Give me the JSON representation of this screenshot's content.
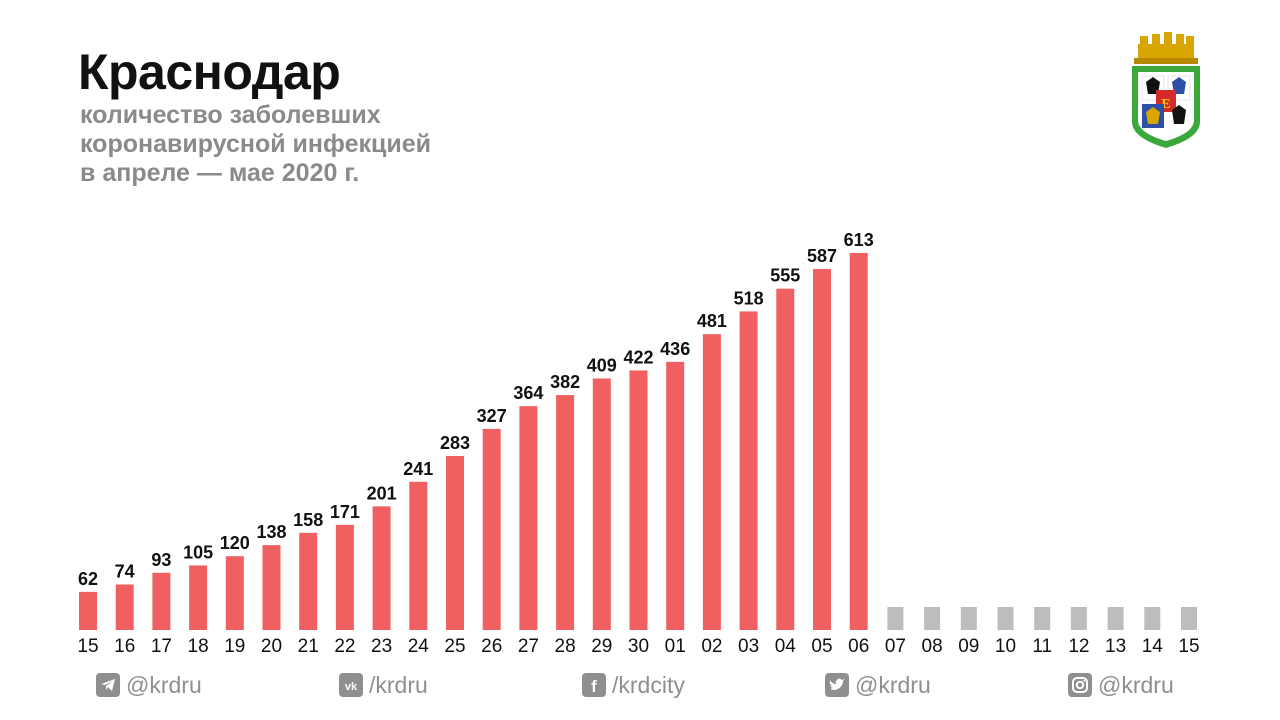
{
  "header": {
    "title": "Краснодар",
    "subtitle_lines": [
      "количество заболевших",
      "коронавирусной инфекцией",
      "в апреле — мае 2020 г."
    ]
  },
  "colors": {
    "bar": "#f06060",
    "future_bar": "#bdbdbd",
    "label": "#111111",
    "muted": "#8f8f8f"
  },
  "chart_data": {
    "type": "bar",
    "title": "количество заболевших коронавирусной инфекцией в апреле — мае 2020 г.",
    "xlabel": "",
    "ylabel": "",
    "categories": [
      "15",
      "16",
      "17",
      "18",
      "19",
      "20",
      "21",
      "22",
      "23",
      "24",
      "25",
      "26",
      "27",
      "28",
      "29",
      "30",
      "01",
      "02",
      "03",
      "04",
      "05",
      "06",
      "07",
      "08",
      "09",
      "10",
      "11",
      "12",
      "13",
      "14",
      "15"
    ],
    "values": [
      62,
      74,
      93,
      105,
      120,
      138,
      158,
      171,
      201,
      241,
      283,
      327,
      364,
      382,
      409,
      422,
      436,
      481,
      518,
      555,
      587,
      613,
      null,
      null,
      null,
      null,
      null,
      null,
      null,
      null,
      null
    ],
    "ylim": [
      0,
      613
    ],
    "grid": false
  },
  "footer": {
    "socials": [
      {
        "icon": "telegram-icon",
        "handle": "@krdru"
      },
      {
        "icon": "vk-icon",
        "handle": "/krdru"
      },
      {
        "icon": "facebook-icon",
        "handle": "/krdcity"
      },
      {
        "icon": "twitter-icon",
        "handle": "@krdru"
      },
      {
        "icon": "instagram-icon",
        "handle": "@krdru"
      }
    ]
  }
}
